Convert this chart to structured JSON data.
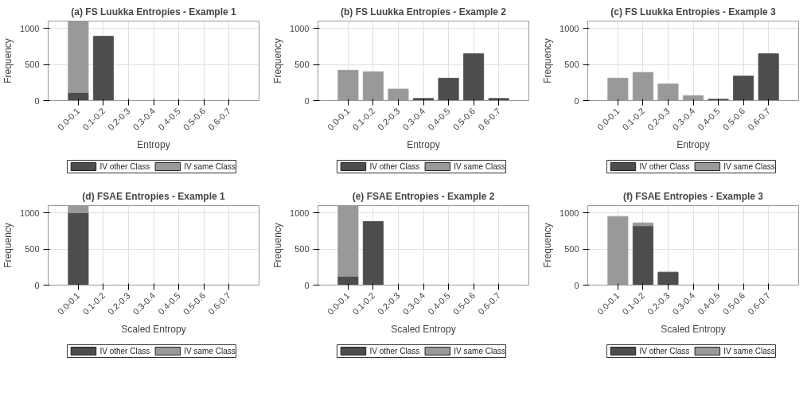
{
  "chart_data": [
    {
      "type": "bar",
      "stacked": true,
      "title": "(a) FS Luukka Entropies - Example 1",
      "xlabel": "Entropy",
      "ylabel": "Frequency",
      "categories": [
        "0.0-0.1",
        "0.1-0.2",
        "0.2-0.3",
        "0.3-0.4",
        "0.4-0.5",
        "0.5-0.6",
        "0.6-0.7"
      ],
      "ylim": [
        0,
        1100
      ],
      "yticks": [
        0,
        500,
        1000
      ],
      "grid": true,
      "legend": "bottom",
      "series": [
        {
          "name": "IV other Class",
          "color": "#4d4d4d",
          "values": [
            110,
            890,
            0,
            0,
            0,
            0,
            0
          ]
        },
        {
          "name": "IV same Class",
          "color": "#999999",
          "values": [
            990,
            0,
            0,
            0,
            0,
            0,
            0
          ]
        }
      ]
    },
    {
      "type": "bar",
      "stacked": true,
      "title": "(b) FS Luukka Entropies - Example 2",
      "xlabel": "Entropy",
      "ylabel": "Frequency",
      "categories": [
        "0.0-0.1",
        "0.1-0.2",
        "0.2-0.3",
        "0.3-0.4",
        "0.4-0.5",
        "0.5-0.6",
        "0.6-0.7"
      ],
      "ylim": [
        0,
        1100
      ],
      "yticks": [
        0,
        500,
        1000
      ],
      "grid": true,
      "legend": "bottom",
      "series": [
        {
          "name": "IV other Class",
          "color": "#4d4d4d",
          "values": [
            0,
            0,
            0,
            30,
            310,
            650,
            30
          ]
        },
        {
          "name": "IV same Class",
          "color": "#999999",
          "values": [
            420,
            400,
            160,
            0,
            0,
            0,
            0
          ]
        }
      ]
    },
    {
      "type": "bar",
      "stacked": true,
      "title": "(c) FS Luukka Entropies - Example 3",
      "xlabel": "Entropy",
      "ylabel": "Frequency",
      "categories": [
        "0.0-0.1",
        "0.1-0.2",
        "0.2-0.3",
        "0.3-0.4",
        "0.4-0.5",
        "0.5-0.6",
        "0.6-0.7"
      ],
      "ylim": [
        0,
        1100
      ],
      "yticks": [
        0,
        500,
        1000
      ],
      "grid": true,
      "legend": "bottom",
      "series": [
        {
          "name": "IV other Class",
          "color": "#4d4d4d",
          "values": [
            0,
            0,
            0,
            0,
            20,
            340,
            650
          ]
        },
        {
          "name": "IV same Class",
          "color": "#999999",
          "values": [
            310,
            390,
            230,
            70,
            0,
            0,
            0
          ]
        }
      ]
    },
    {
      "type": "bar",
      "stacked": true,
      "title": "(d) FSAE Entropies - Example 1",
      "xlabel": "Scaled Entropy",
      "ylabel": "Frequency",
      "categories": [
        "0.0-0.1",
        "0.1-0.2",
        "0.2-0.3",
        "0.3-0.4",
        "0.4-0.5",
        "0.5-0.6",
        "0.6-0.7"
      ],
      "ylim": [
        0,
        1100
      ],
      "yticks": [
        0,
        500,
        1000
      ],
      "grid": true,
      "legend": "bottom",
      "series": [
        {
          "name": "IV other Class",
          "color": "#4d4d4d",
          "values": [
            1000,
            0,
            0,
            0,
            0,
            0,
            0
          ]
        },
        {
          "name": "IV same Class",
          "color": "#999999",
          "values": [
            100,
            0,
            0,
            0,
            0,
            0,
            0
          ]
        }
      ]
    },
    {
      "type": "bar",
      "stacked": true,
      "title": "(e) FSAE Entropies - Example 2",
      "xlabel": "Scaled Entropy",
      "ylabel": "Frequency",
      "categories": [
        "0.0-0.1",
        "0.1-0.2",
        "0.2-0.3",
        "0.3-0.4",
        "0.4-0.5",
        "0.5-0.6",
        "0.6-0.7"
      ],
      "ylim": [
        0,
        1100
      ],
      "yticks": [
        0,
        500,
        1000
      ],
      "grid": true,
      "legend": "bottom",
      "series": [
        {
          "name": "IV other Class",
          "color": "#4d4d4d",
          "values": [
            120,
            880,
            0,
            0,
            0,
            0,
            0
          ]
        },
        {
          "name": "IV same Class",
          "color": "#999999",
          "values": [
            980,
            0,
            0,
            0,
            0,
            0,
            0
          ]
        }
      ]
    },
    {
      "type": "bar",
      "stacked": true,
      "title": "(f) FSAE Entropies - Example 3",
      "xlabel": "Scaled Entropy",
      "ylabel": "Frequency",
      "categories": [
        "0.0-0.1",
        "0.1-0.2",
        "0.2-0.3",
        "0.3-0.4",
        "0.4-0.5",
        "0.5-0.6",
        "0.6-0.7"
      ],
      "ylim": [
        0,
        1100
      ],
      "yticks": [
        0,
        500,
        1000
      ],
      "grid": true,
      "legend": "bottom",
      "series": [
        {
          "name": "IV other Class",
          "color": "#4d4d4d",
          "values": [
            0,
            820,
            180,
            0,
            0,
            0,
            0
          ]
        },
        {
          "name": "IV same Class",
          "color": "#999999",
          "values": [
            950,
            40,
            0,
            0,
            0,
            0,
            0
          ]
        }
      ]
    }
  ]
}
